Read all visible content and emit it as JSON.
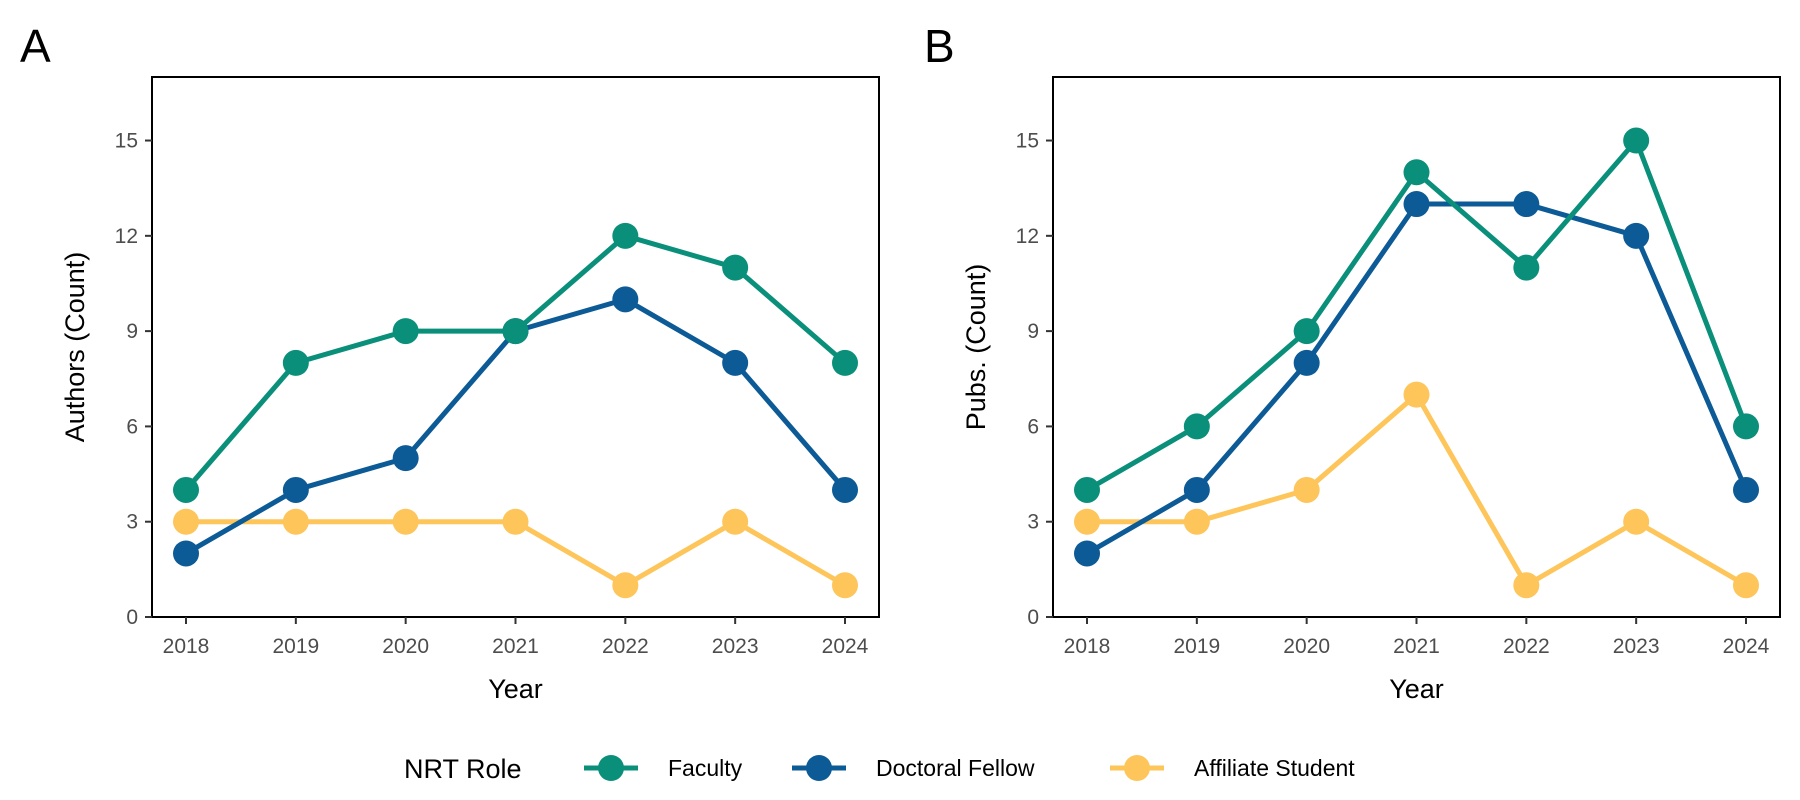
{
  "legend": {
    "title": "NRT Role",
    "entries": [
      {
        "label": "Faculty",
        "color": "#0a8f7a"
      },
      {
        "label": "Doctoral Fellow",
        "color": "#0c5a96"
      },
      {
        "label": "Affiliate Student",
        "color": "#fdc55a"
      }
    ]
  },
  "chart_data": [
    {
      "type": "line",
      "panel_label": "A",
      "xlabel": "Year",
      "ylabel": "Authors (Count)",
      "x": [
        2018,
        2019,
        2020,
        2021,
        2022,
        2023,
        2024
      ],
      "ylim": [
        0,
        17
      ],
      "yticks": [
        0,
        3,
        6,
        9,
        12,
        15
      ],
      "grid": false,
      "legend_position": "bottom",
      "series": [
        {
          "name": "Faculty",
          "color": "#0a8f7a",
          "values": [
            4,
            8,
            9,
            9,
            12,
            11,
            8
          ]
        },
        {
          "name": "Doctoral Fellow",
          "color": "#0c5a96",
          "values": [
            2,
            4,
            5,
            9,
            10,
            8,
            4
          ]
        },
        {
          "name": "Affiliate Student",
          "color": "#fdc55a",
          "values": [
            3,
            3,
            3,
            3,
            1,
            3,
            1
          ]
        }
      ]
    },
    {
      "type": "line",
      "panel_label": "B",
      "xlabel": "Year",
      "ylabel": "Pubs. (Count)",
      "x": [
        2018,
        2019,
        2020,
        2021,
        2022,
        2023,
        2024
      ],
      "ylim": [
        0,
        17
      ],
      "yticks": [
        0,
        3,
        6,
        9,
        12,
        15
      ],
      "grid": false,
      "legend_position": "bottom",
      "series": [
        {
          "name": "Faculty",
          "color": "#0a8f7a",
          "values": [
            4,
            6,
            9,
            14,
            11,
            15,
            6
          ]
        },
        {
          "name": "Doctoral Fellow",
          "color": "#0c5a96",
          "values": [
            2,
            4,
            8,
            13,
            13,
            12,
            4
          ]
        },
        {
          "name": "Affiliate Student",
          "color": "#fdc55a",
          "values": [
            3,
            3,
            4,
            7,
            1,
            3,
            1
          ]
        }
      ]
    }
  ]
}
